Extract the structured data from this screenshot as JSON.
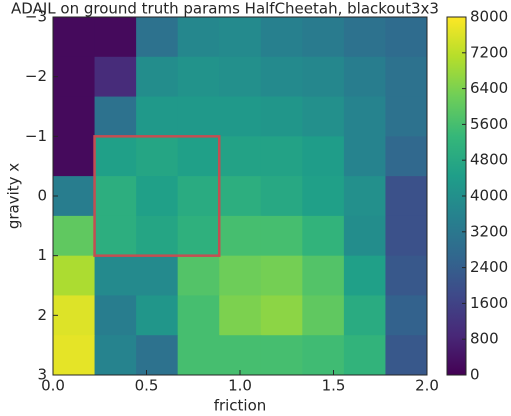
{
  "chart_data": {
    "type": "heatmap",
    "title": "ADAIL on ground truth params HalfCheetah, blackout3x3",
    "x_label": "friction",
    "y_label": "gravity x",
    "xlim": [
      0,
      2
    ],
    "ylim": [
      -3,
      3
    ],
    "y_inverted": true,
    "xticks": [
      {
        "value": 0,
        "label": "0.0"
      },
      {
        "value": 0.5,
        "label": "0.5"
      },
      {
        "value": 1,
        "label": "1.0"
      },
      {
        "value": 1.5,
        "label": "1.5"
      },
      {
        "value": 2,
        "label": "2.0"
      }
    ],
    "yticks": [
      {
        "value": -3,
        "label": "−3"
      },
      {
        "value": -2,
        "label": "−2"
      },
      {
        "value": -1,
        "label": "−1"
      },
      0,
      1,
      2,
      3
    ],
    "colormap": "viridis",
    "zlim": [
      0,
      8000
    ],
    "colorbar_ticks": [
      0,
      800,
      1600,
      2400,
      3200,
      4000,
      4800,
      5600,
      6400,
      7200,
      8000
    ],
    "z": [
      [
        200,
        200,
        3000,
        3700,
        3800,
        3500,
        3300,
        3000,
        2800
      ],
      [
        200,
        1000,
        3900,
        4100,
        4000,
        3800,
        3700,
        3400,
        3000
      ],
      [
        200,
        3000,
        4300,
        4300,
        4300,
        4200,
        4000,
        3600,
        3000
      ],
      [
        200,
        4500,
        4700,
        4500,
        4600,
        4600,
        4400,
        3600,
        2700
      ],
      [
        3400,
        5000,
        4500,
        4900,
        5000,
        4800,
        4500,
        4000,
        2000
      ],
      [
        6000,
        5000,
        4700,
        5100,
        5600,
        5600,
        5200,
        3900,
        2000
      ],
      [
        7000,
        3800,
        3800,
        5800,
        6200,
        6300,
        5800,
        4500,
        2200
      ],
      [
        7600,
        3400,
        4200,
        5600,
        6400,
        6600,
        6000,
        4900,
        2500
      ],
      [
        7700,
        3600,
        3000,
        5600,
        5600,
        5600,
        5500,
        5200,
        2200
      ]
    ],
    "highlight": {
      "cols": [
        1,
        3
      ],
      "rows": [
        3,
        5
      ],
      "color": "#c44e52"
    }
  }
}
